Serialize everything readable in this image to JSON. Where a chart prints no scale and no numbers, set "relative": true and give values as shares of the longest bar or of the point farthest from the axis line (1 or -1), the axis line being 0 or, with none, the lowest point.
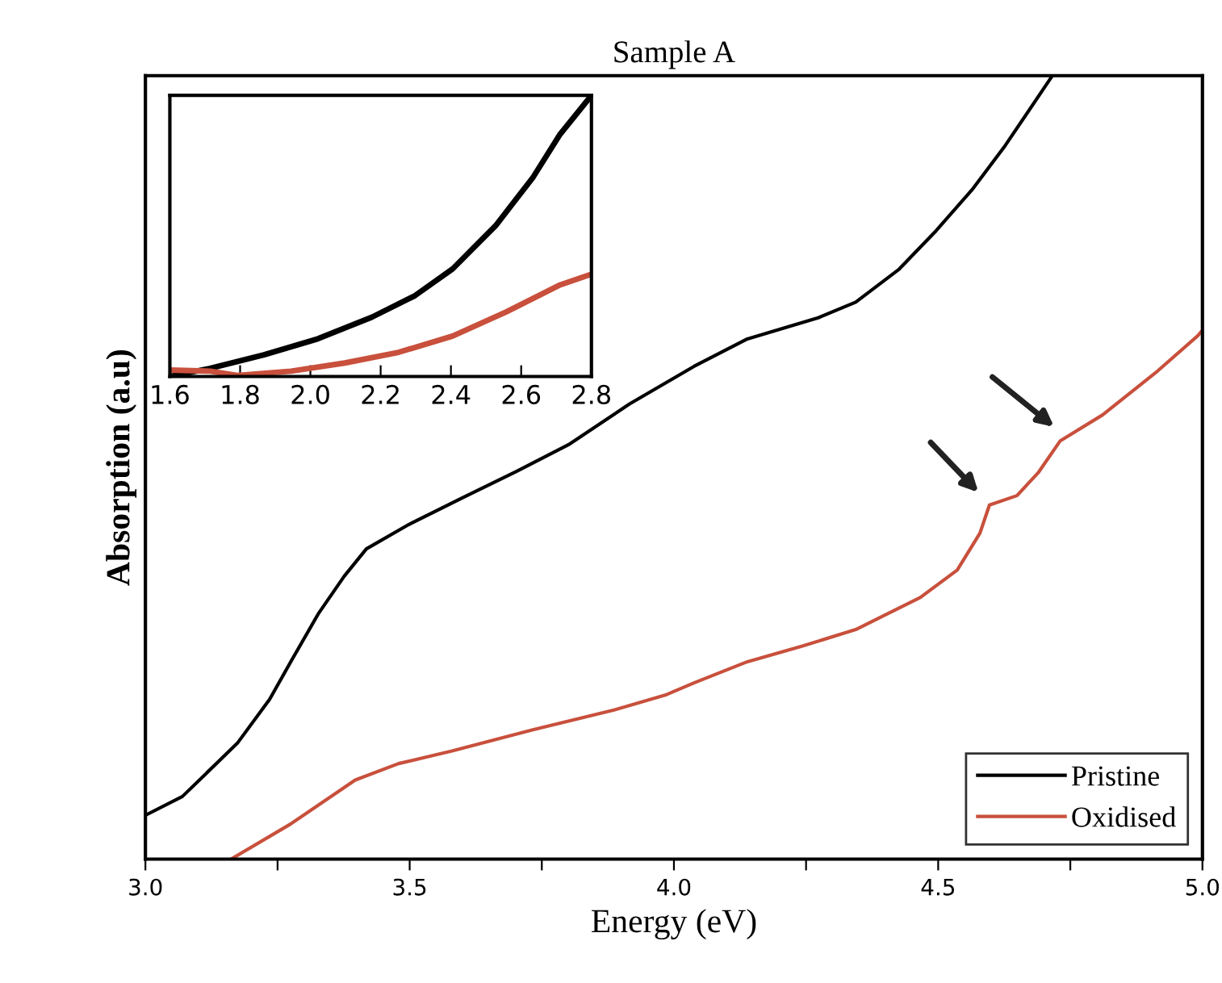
{
  "chart_data": [
    {
      "type": "line",
      "title": "Sample A",
      "xlabel": "Energy (eV)",
      "ylabel": "Absorption (a.u)",
      "relative": true,
      "xlim": [
        3.0,
        5.0
      ],
      "xticks": [
        {
          "value": 3,
          "label": "3.0"
        },
        {
          "value": 3.25,
          "label": null
        },
        3.5,
        {
          "value": 3.75,
          "label": null
        },
        {
          "value": 4,
          "label": "4.0"
        },
        {
          "value": 4.25,
          "label": null
        },
        4.5,
        {
          "value": 4.75,
          "label": null
        },
        {
          "value": 5,
          "label": "5.0"
        }
      ],
      "legend": "bottom right",
      "line_style": "solid",
      "series": [
        {
          "name": "Pristine",
          "color": "#000000",
          "x": [
            3.0,
            3.07,
            3.174,
            3.235,
            3.275,
            3.327,
            3.376,
            3.418,
            3.498,
            3.602,
            3.702,
            3.803,
            3.916,
            4.038,
            4.139,
            4.273,
            4.344,
            4.426,
            4.496,
            4.566,
            4.627,
            4.71,
            4.716
          ],
          "values": [
            0.056,
            0.08,
            0.148,
            0.204,
            0.252,
            0.313,
            0.361,
            0.396,
            0.427,
            0.462,
            0.495,
            0.53,
            0.581,
            0.629,
            0.664,
            0.691,
            0.711,
            0.753,
            0.802,
            0.856,
            0.911,
            0.994,
            1.0
          ]
        },
        {
          "name": "Oxidised",
          "color": "#c8503c",
          "x": [
            3.162,
            3.275,
            3.397,
            3.479,
            3.58,
            3.733,
            3.885,
            3.986,
            4.038,
            4.139,
            4.243,
            4.344,
            4.466,
            4.536,
            4.579,
            4.597,
            4.649,
            4.689,
            4.731,
            4.811,
            4.915,
            4.991,
            5.0
          ],
          "values": [
            0.0,
            0.045,
            0.101,
            0.122,
            0.138,
            0.165,
            0.19,
            0.21,
            0.225,
            0.252,
            0.272,
            0.293,
            0.334,
            0.369,
            0.416,
            0.452,
            0.464,
            0.493,
            0.534,
            0.567,
            0.623,
            0.668,
            0.675
          ]
        }
      ]
    },
    {
      "type": "line",
      "relative": true,
      "xlim": [
        1.6,
        2.8
      ],
      "xticks": [
        1.6,
        1.8,
        {
          "value": 2,
          "label": "2.0"
        },
        2.2,
        2.4,
        2.6,
        2.8
      ],
      "tick_labels": "x",
      "line_style": "solid",
      "series": [
        {
          "color": "#000000",
          "x": [
            1.6,
            1.715,
            1.868,
            2.021,
            2.175,
            2.297,
            2.405,
            2.527,
            2.634,
            2.711,
            2.8
          ],
          "values": [
            0.0,
            0.029,
            0.077,
            0.134,
            0.211,
            0.287,
            0.383,
            0.536,
            0.709,
            0.862,
            1.0
          ]
        },
        {
          "color": "#c8503c",
          "x": [
            1.6,
            1.715,
            1.792,
            1.945,
            2.098,
            2.251,
            2.405,
            2.558,
            2.711,
            2.8
          ],
          "values": [
            0.023,
            0.019,
            0.004,
            0.019,
            0.048,
            0.086,
            0.144,
            0.23,
            0.326,
            0.364
          ]
        }
      ]
    }
  ]
}
